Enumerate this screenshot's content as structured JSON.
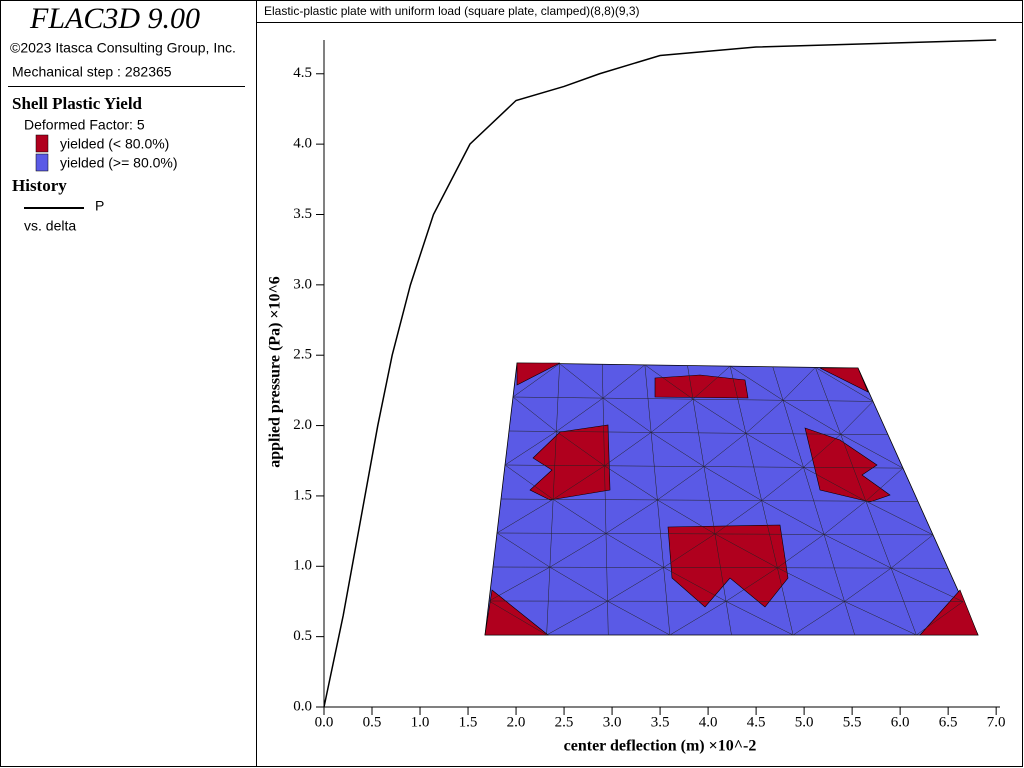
{
  "panel": {
    "product": "FLAC3D 9.00",
    "copyright": "©2023 Itasca Consulting Group, Inc.",
    "step": "Mechanical step : 282365",
    "plot_heading": "Shell Plastic Yield",
    "deformed": "Deformed Factor: 5",
    "yield_items": [
      {
        "label": "yielded (< 80.0%)",
        "color": "#b0001e"
      },
      {
        "label": "yielded (>= 80.0%)",
        "color": "#5a5ae6"
      }
    ],
    "history_heading": "History",
    "history_versus": "vs. delta"
  },
  "chart_data": {
    "type": "line",
    "title": "Elastic-plastic plate with uniform load (square plate, clamped)(8,8)(9,3)",
    "x_label": "center deflection (m) ×10^-2",
    "y_label": "applied pressure (Pa) ×10^6",
    "x": [
      0,
      0.2,
      0.4,
      0.56,
      0.71,
      0.9,
      1.14,
      1.52,
      2.0,
      2.5,
      2.87,
      3.5,
      4.5,
      5.5,
      7.0
    ],
    "series": [
      {
        "name": "P",
        "color": "#000000",
        "values": [
          0,
          0.65,
          1.4,
          2.0,
          2.5,
          3.0,
          3.5,
          4.0,
          4.31,
          4.41,
          4.5,
          4.63,
          4.69,
          4.71,
          4.74
        ]
      }
    ],
    "xlim": [
      0,
      7.04
    ],
    "ylim": [
      0,
      4.74
    ],
    "xticks": [
      {
        "value": 0,
        "label": "0.0"
      },
      {
        "value": 0.5,
        "label": "0.5"
      },
      {
        "value": 1,
        "label": "1.0"
      },
      {
        "value": 1.5,
        "label": "1.5"
      },
      {
        "value": 2,
        "label": "2.0"
      },
      {
        "value": 2.5,
        "label": "2.5"
      },
      {
        "value": 3,
        "label": "3.0"
      },
      {
        "value": 3.5,
        "label": "3.5"
      },
      {
        "value": 4,
        "label": "4.0"
      },
      {
        "value": 4.5,
        "label": "4.5"
      },
      {
        "value": 5,
        "label": "5.0"
      },
      {
        "value": 5.5,
        "label": "5.5"
      },
      {
        "value": 6,
        "label": "6.0"
      },
      {
        "value": 6.5,
        "label": "6.5"
      },
      {
        "value": 7,
        "label": "7.0"
      }
    ],
    "yticks": [
      {
        "value": 0,
        "label": "0.0"
      },
      {
        "value": 0.5,
        "label": "0.5"
      },
      {
        "value": 1,
        "label": "1.0"
      },
      {
        "value": 1.5,
        "label": "1.5"
      },
      {
        "value": 2,
        "label": "2.0"
      },
      {
        "value": 2.5,
        "label": "2.5"
      },
      {
        "value": 3,
        "label": "3.0"
      },
      {
        "value": 3.5,
        "label": "3.5"
      },
      {
        "value": 4,
        "label": "4.0"
      },
      {
        "value": 4.5,
        "label": "4.5"
      }
    ]
  }
}
